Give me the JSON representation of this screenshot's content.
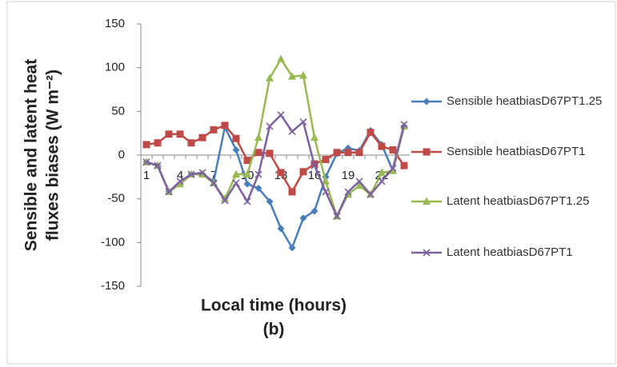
{
  "chart_data": {
    "type": "line",
    "caption": "(b)",
    "x_label": "Local time (hours)",
    "y_label": [
      "Sensible and latent heat",
      "fluxes biases (W m⁻²)"
    ],
    "categories": [
      "1",
      null,
      null,
      "4",
      null,
      null,
      "7",
      null,
      null,
      "10",
      null,
      null,
      "13",
      null,
      null,
      "16",
      null,
      null,
      "19",
      null,
      null,
      "22",
      null,
      null
    ],
    "ylim": [
      -150,
      150
    ],
    "yticks": [
      -150,
      -100,
      -50,
      0,
      50,
      100,
      150
    ],
    "grid": false,
    "legend": "right",
    "series": [
      {
        "name": "Sensible heatbiasD67PT1.25",
        "color": "#4a7ebb",
        "marker": "diamond",
        "values": [
          -8,
          -12,
          -42,
          -33,
          -22,
          -22,
          -30,
          32,
          6,
          -33,
          -38,
          -53,
          -84,
          -106,
          -72,
          -64,
          -25,
          2,
          8,
          5,
          28,
          12,
          -18,
          33
        ]
      },
      {
        "name": "Sensible heatbiasD67PT1",
        "color": "#be4b48",
        "marker": "square",
        "values": [
          12,
          14,
          24,
          24,
          14,
          20,
          29,
          34,
          19,
          -6,
          3,
          2,
          -20,
          -42,
          -19,
          -10,
          -5,
          3,
          3,
          3,
          26,
          10,
          6,
          -12
        ]
      },
      {
        "name": "Latent heatbiasD67PT1.25",
        "color": "#98b954",
        "marker": "triangle",
        "values": [
          -8,
          -12,
          -42,
          -33,
          -22,
          -22,
          -32,
          -50,
          -22,
          -22,
          20,
          88,
          110,
          90,
          91,
          20,
          -30,
          -70,
          -45,
          -35,
          -45,
          -20,
          -18,
          33
        ]
      },
      {
        "name": "Latent heatbiasD67PT1",
        "color": "#7d60a0",
        "marker": "x",
        "values": [
          -8,
          -12,
          -42,
          -30,
          -22,
          -20,
          -32,
          -52,
          -32,
          -53,
          -22,
          33,
          46,
          27,
          38,
          -12,
          -42,
          -70,
          -42,
          -30,
          -45,
          -30,
          -15,
          35
        ]
      }
    ]
  }
}
